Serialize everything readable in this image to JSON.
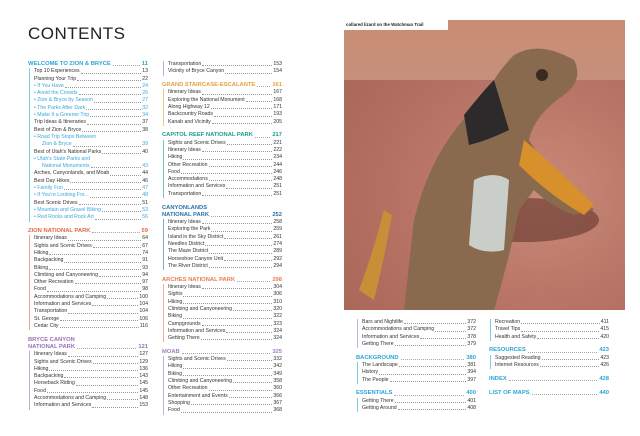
{
  "page_title": "CONTENTS",
  "photo": {
    "caption": "collared lizard on the Watchman Trail"
  },
  "colors": {
    "welcome": "#2aa6d8",
    "zion": "#e5673e",
    "bryce": "#9a70b8",
    "grand": "#e0a23c",
    "capitol": "#1c9c8c",
    "canyonlands": "#2a70a8",
    "arches": "#ea7c4c",
    "moab": "#a27dc2",
    "cyan": "#2aa6d8"
  },
  "columns": [
    {
      "sections": [
        {
          "title": "WELCOME TO ZION & BRYCE",
          "page": "11",
          "color": "#2aa6d8",
          "items": [
            {
              "label": "Top 10 Experiences",
              "page": "13"
            },
            {
              "label": "Planning Your Trip",
              "page": "22"
            },
            {
              "label": "• If You Have",
              "page": "24",
              "sub": true
            },
            {
              "label": "• Avoid the Crowds",
              "page": "26",
              "sub": true
            },
            {
              "label": "• Zion & Bryce by Season",
              "page": "27",
              "sub": true
            },
            {
              "label": "• The Parks After Dark",
              "page": "32",
              "sub": true
            },
            {
              "label": "• Make It a Greener Trip",
              "page": "34",
              "sub": true
            },
            {
              "label": "Trip Ideas & Itineraries",
              "page": "37"
            },
            {
              "label": "Best of Zion & Bryce",
              "page": "38"
            },
            {
              "label": "• Road Trip Stops Between",
              "label2": "Zion & Bryce",
              "page": "39",
              "sub": true
            },
            {
              "label": "Best of Utah's National Parks",
              "page": "40"
            },
            {
              "label": "• Utah's State Parks and",
              "label2": "National Monuments",
              "page": "43",
              "sub": true
            },
            {
              "label": "Arches, Canyonlands, and Moab",
              "page": "44"
            },
            {
              "label": "Best Day Hikes",
              "page": "46"
            },
            {
              "label": "• Family Fun",
              "page": "47",
              "sub": true
            },
            {
              "label": "• If You're Looking For...",
              "page": "48",
              "sub": true
            },
            {
              "label": "Best Scenic Drives",
              "page": "51"
            },
            {
              "label": "• Mountain and Gravel Biking",
              "page": "53",
              "sub": true
            },
            {
              "label": "• Red Rocks and Rock Art",
              "page": "56",
              "sub": true
            }
          ]
        },
        {
          "title": "ZION NATIONAL PARK",
          "page": "59",
          "color": "#e5673e",
          "items": [
            {
              "label": "Itinerary Ideas",
              "page": "64"
            },
            {
              "label": "Sights and Scenic Drives",
              "page": "67"
            },
            {
              "label": "Hiking",
              "page": "74"
            },
            {
              "label": "Backpacking",
              "page": "91"
            },
            {
              "label": "Biking",
              "page": "93"
            },
            {
              "label": "Climbing and Canyoneering",
              "page": "94"
            },
            {
              "label": "Other Recreation",
              "page": "97"
            },
            {
              "label": "Food",
              "page": "98"
            },
            {
              "label": "Accommodations and Camping",
              "page": "100"
            },
            {
              "label": "Information and Services",
              "page": "104"
            },
            {
              "label": "Transportation",
              "page": "104"
            },
            {
              "label": "St. George",
              "page": "106"
            },
            {
              "label": "Cedar City",
              "page": "116"
            }
          ]
        },
        {
          "title": "BRYCE CANYON",
          "title2": "NATIONAL PARK",
          "page": "121",
          "color": "#9a70b8",
          "items": [
            {
              "label": "Itinerary Ideas",
              "page": "127"
            },
            {
              "label": "Sights and Scenic Drives",
              "page": "129"
            },
            {
              "label": "Hiking",
              "page": "136"
            },
            {
              "label": "Backpacking",
              "page": "143"
            },
            {
              "label": "Horseback Riding",
              "page": "145"
            },
            {
              "label": "Food",
              "page": "145"
            },
            {
              "label": "Accommodations and Camping",
              "page": "148"
            },
            {
              "label": "Information and Services",
              "page": "153"
            }
          ]
        }
      ]
    },
    {
      "sections": [
        {
          "color": "#9a70b8",
          "items": [
            {
              "label": "Transportation",
              "page": "153"
            },
            {
              "label": "Vicinity of Bryce Canyon",
              "page": "154"
            }
          ]
        },
        {
          "title": "GRAND STAIRCASE-ESCALANTE",
          "page": "161",
          "color": "#e0a23c",
          "items": [
            {
              "label": "Itinerary Ideas",
              "page": "167"
            },
            {
              "label": "Exploring the National Monument",
              "page": "168"
            },
            {
              "label": "Along Highway 12",
              "page": "171"
            },
            {
              "label": "Backcountry Roads",
              "page": "193"
            },
            {
              "label": "Kanab and Vicinity",
              "page": "205"
            }
          ]
        },
        {
          "title": "CAPITOL REEF NATIONAL PARK",
          "page": "217",
          "color": "#1c9c8c",
          "items": [
            {
              "label": "Sights and Scenic Drives",
              "page": "221"
            },
            {
              "label": "Itinerary Ideas",
              "page": "222"
            },
            {
              "label": "Hiking",
              "page": "234"
            },
            {
              "label": "Other Recreation",
              "page": "244"
            },
            {
              "label": "Food",
              "page": "246"
            },
            {
              "label": "Accommodations",
              "page": "248"
            },
            {
              "label": "Information and Services",
              "page": "251"
            },
            {
              "label": "Transportation",
              "page": "251"
            }
          ]
        },
        {
          "title": "CANYONLANDS",
          "title2": "NATIONAL PARK",
          "page": "252",
          "color": "#2a70a8",
          "items": [
            {
              "label": "Itinerary Ideas",
              "page": "258"
            },
            {
              "label": "Exploring the Park",
              "page": "259"
            },
            {
              "label": "Island in the Sky District",
              "page": "261"
            },
            {
              "label": "Needles District",
              "page": "274"
            },
            {
              "label": "The Maze District",
              "page": "289"
            },
            {
              "label": "Horseshoe Canyon Unit",
              "page": "292"
            },
            {
              "label": "The River District",
              "page": "294"
            }
          ]
        },
        {
          "title": "ARCHES NATIONAL PARK",
          "page": "298",
          "color": "#ea7c4c",
          "items": [
            {
              "label": "Itinerary Ideas",
              "page": "304"
            },
            {
              "label": "Sights",
              "page": "306"
            },
            {
              "label": "Hiking",
              "page": "310"
            },
            {
              "label": "Climbing and Canyoneering",
              "page": "320"
            },
            {
              "label": "Biking",
              "page": "322"
            },
            {
              "label": "Campgrounds",
              "page": "323"
            },
            {
              "label": "Information and Services",
              "page": "324"
            },
            {
              "label": "Getting There",
              "page": "324"
            }
          ]
        },
        {
          "title": "MOAB",
          "page": "325",
          "color": "#a27dc2",
          "items": [
            {
              "label": "Sights and Scenic Drives",
              "page": "332"
            },
            {
              "label": "Hiking",
              "page": "342"
            },
            {
              "label": "Biking",
              "page": "349"
            },
            {
              "label": "Climbing and Canyoneering",
              "page": "358"
            },
            {
              "label": "Other Recreation",
              "page": "360"
            },
            {
              "label": "Entertainment and Events",
              "page": "366"
            },
            {
              "label": "Shopping",
              "page": "367"
            },
            {
              "label": "Food",
              "page": "368"
            }
          ]
        }
      ]
    },
    {
      "sections": [
        {
          "color": "#a27dc2",
          "items": [
            {
              "label": "Bars and Nightlife",
              "page": "372"
            },
            {
              "label": "Accommodations and Camping",
              "page": "372"
            },
            {
              "label": "Information and Services",
              "page": "378"
            },
            {
              "label": "Getting There",
              "page": "379"
            }
          ]
        },
        {
          "title": "BACKGROUND",
          "page": "380",
          "color": "#2aa6d8",
          "items": [
            {
              "label": "The Landscape",
              "page": "381"
            },
            {
              "label": "History",
              "page": "394"
            },
            {
              "label": "The People",
              "page": "397"
            }
          ]
        },
        {
          "title": "ESSENTIALS",
          "page": "400",
          "color": "#2aa6d8",
          "items": [
            {
              "label": "Getting There",
              "page": "401"
            },
            {
              "label": "Getting Around",
              "page": "408"
            }
          ]
        }
      ]
    },
    {
      "sections": [
        {
          "color": "#2aa6d8",
          "items": [
            {
              "label": "Recreation",
              "page": "411"
            },
            {
              "label": "Travel Tips",
              "page": "415"
            },
            {
              "label": "Health and Safety",
              "page": "420"
            }
          ]
        },
        {
          "title": "RESOURCES",
          "page": "423",
          "color": "#2aa6d8",
          "items": [
            {
              "label": "Suggested Reading",
              "page": "423"
            },
            {
              "label": "Internet Resources",
              "page": "426"
            }
          ]
        },
        {
          "title": "INDEX",
          "page": "428",
          "color": "#2aa6d8",
          "items": []
        },
        {
          "title": "LIST OF MAPS",
          "page": "440",
          "color": "#2aa6d8",
          "items": []
        }
      ]
    }
  ]
}
